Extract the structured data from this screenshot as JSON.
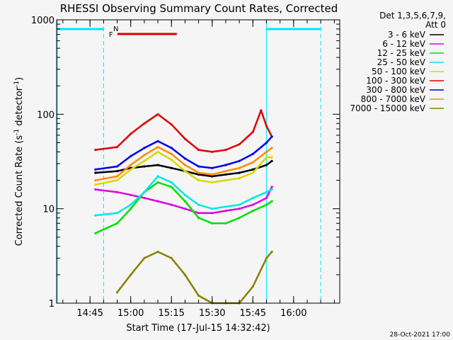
{
  "chart_data": {
    "type": "line",
    "title": "RHESSI Observing Summary Count Rates, Corrected",
    "xlabel": "Start Time (17-Jul-15 14:32:42)",
    "ylabel": "Corrected Count Rate (s⁻¹ detector⁻¹)",
    "ylabel_parts": [
      "Corrected Count Rate (s",
      "-1",
      " detector",
      "-1",
      ")"
    ],
    "y_scale": "log",
    "ylim": [
      1,
      1000
    ],
    "xlim": [
      "14:32:42",
      "16:17:00"
    ],
    "x_ticks": [
      "14:45",
      "15:00",
      "15:15",
      "15:30",
      "15:45",
      "16:00"
    ],
    "y_ticks": [
      "1",
      "10",
      "100",
      "1000"
    ],
    "legend_header": [
      "Det 1,3,5,6,7,9,",
      "Att 0"
    ],
    "legend_position": "right",
    "footer_date": "28-Oct-2021 17:00",
    "annotations": [
      {
        "label": "N",
        "color": "#00e5ff",
        "start": "14:52",
        "end": "14:52"
      },
      {
        "label": "F",
        "color": "#e00000",
        "start": "14:53",
        "end": "15:17"
      }
    ],
    "night_bars": [
      {
        "start": "14:32:42",
        "end": "14:50",
        "color": "#00e5ff"
      },
      {
        "start": "15:50",
        "end": "16:10",
        "color": "#00e5ff"
      }
    ],
    "series": [
      {
        "name": "3 - 6 keV",
        "color": "#000000",
        "x": [
          "14:47",
          "14:55",
          "15:00",
          "15:05",
          "15:10",
          "15:15",
          "15:20",
          "15:25",
          "15:30",
          "15:35",
          "15:40",
          "15:45",
          "15:50",
          "15:52"
        ],
        "y": [
          24,
          25,
          27,
          28,
          29,
          27,
          25,
          23,
          22,
          23,
          24,
          26,
          29,
          32
        ]
      },
      {
        "name": "6 - 12 keV",
        "color": "#e000e0",
        "x": [
          "14:47",
          "14:55",
          "15:00",
          "15:05",
          "15:10",
          "15:15",
          "15:20",
          "15:25",
          "15:30",
          "15:35",
          "15:40",
          "15:45",
          "15:50",
          "15:52"
        ],
        "y": [
          16,
          15,
          14,
          13,
          12,
          11,
          10,
          9,
          9,
          9.5,
          10,
          11,
          13,
          17
        ]
      },
      {
        "name": "12 - 25 keV",
        "color": "#00e000",
        "x": [
          "14:47",
          "14:55",
          "15:00",
          "15:05",
          "15:10",
          "15:15",
          "15:20",
          "15:25",
          "15:30",
          "15:35",
          "15:40",
          "15:45",
          "15:50",
          "15:52"
        ],
        "y": [
          5.5,
          7,
          10,
          15,
          19,
          17,
          12,
          8,
          7,
          7,
          8,
          9.5,
          11,
          12
        ]
      },
      {
        "name": "25 - 50 keV",
        "color": "#00e8e8",
        "x": [
          "14:47",
          "14:55",
          "15:00",
          "15:05",
          "15:10",
          "15:15",
          "15:20",
          "15:25",
          "15:30",
          "15:35",
          "15:40",
          "15:45",
          "15:50",
          "15:52"
        ],
        "y": [
          8.5,
          9,
          11,
          15,
          22,
          19,
          14,
          11,
          10,
          10.5,
          11,
          13,
          15,
          16
        ]
      },
      {
        "name": "50 - 100 keV",
        "color": "#d8d800",
        "x": [
          "14:47",
          "14:55",
          "15:00",
          "15:05",
          "15:10",
          "15:15",
          "15:20",
          "15:25",
          "15:30",
          "15:35",
          "15:40",
          "15:45",
          "15:50",
          "15:52"
        ],
        "y": [
          18,
          20,
          26,
          32,
          40,
          33,
          25,
          20,
          19,
          20,
          21,
          24,
          35,
          35
        ]
      },
      {
        "name": "100 - 300 keV",
        "color": "#e00000",
        "x": [
          "14:47",
          "14:55",
          "15:00",
          "15:05",
          "15:10",
          "15:15",
          "15:20",
          "15:25",
          "15:30",
          "15:35",
          "15:40",
          "15:45",
          "15:48",
          "15:50",
          "15:52"
        ],
        "y": [
          42,
          45,
          62,
          80,
          100,
          78,
          55,
          42,
          40,
          42,
          48,
          65,
          110,
          75,
          58
        ]
      },
      {
        "name": "300 - 800 keV",
        "color": "#0000f0",
        "x": [
          "14:47",
          "14:55",
          "15:00",
          "15:05",
          "15:10",
          "15:15",
          "15:20",
          "15:25",
          "15:30",
          "15:35",
          "15:40",
          "15:45",
          "15:50",
          "15:52"
        ],
        "y": [
          26,
          28,
          36,
          44,
          52,
          44,
          34,
          28,
          27,
          29,
          32,
          38,
          50,
          58
        ]
      },
      {
        "name": "800 - 7000 keV",
        "color": "#ff8c00",
        "x": [
          "14:47",
          "14:55",
          "15:00",
          "15:05",
          "15:10",
          "15:15",
          "15:20",
          "15:25",
          "15:30",
          "15:35",
          "15:40",
          "15:45",
          "15:50",
          "15:52"
        ],
        "y": [
          20,
          22,
          29,
          37,
          45,
          38,
          29,
          24,
          23,
          25,
          27,
          31,
          40,
          44
        ]
      },
      {
        "name": "7000 - 15000 keV",
        "color": "#888000",
        "x": [
          "14:55",
          "15:00",
          "15:05",
          "15:10",
          "15:15",
          "15:20",
          "15:25",
          "15:30",
          "15:35",
          "15:40",
          "15:45",
          "15:50",
          "15:52"
        ],
        "y": [
          1.3,
          2,
          3,
          3.5,
          3,
          2,
          1.2,
          1,
          1,
          1,
          1.5,
          3,
          3.5
        ]
      }
    ]
  }
}
